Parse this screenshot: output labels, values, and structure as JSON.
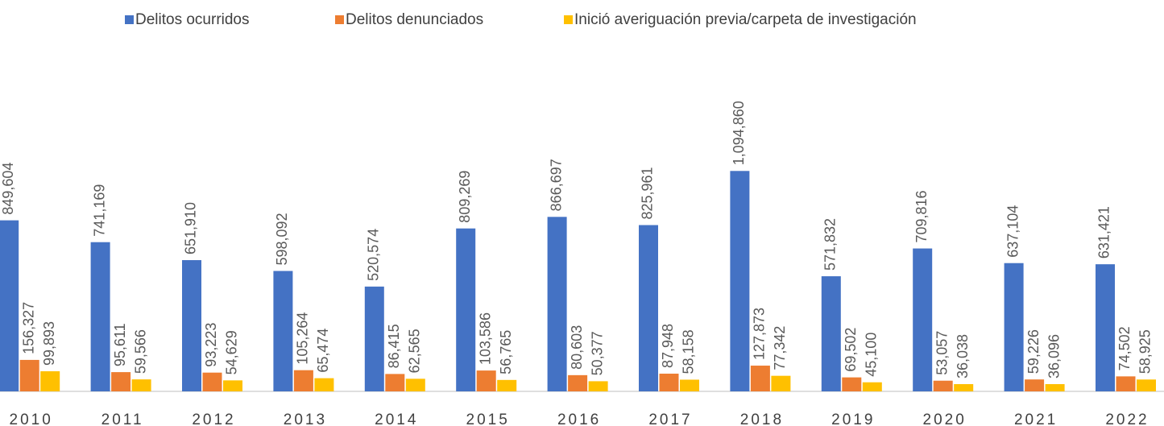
{
  "chart_data": {
    "type": "bar",
    "categories": [
      "2010",
      "2011",
      "2012",
      "2013",
      "2014",
      "2015",
      "2016",
      "2017",
      "2018",
      "2019",
      "2020",
      "2021",
      "2022"
    ],
    "series": [
      {
        "name": "Delitos ocurridos",
        "color": "#4472c4",
        "values": [
          849604,
          741169,
          651910,
          598092,
          520574,
          809269,
          866697,
          825961,
          1094860,
          571832,
          709816,
          637104,
          631421
        ],
        "value_labels": [
          "849,604",
          "741,169",
          "651,910",
          "598,092",
          "520,574",
          "809,269",
          "866,697",
          "825,961",
          "1,094,860",
          "571,832",
          "709,816",
          "637,104",
          "631,421"
        ]
      },
      {
        "name": "Delitos denunciados",
        "color": "#ed7d31",
        "values": [
          156327,
          95611,
          93223,
          105264,
          86415,
          103586,
          80603,
          87948,
          127873,
          69502,
          53057,
          59226,
          74502
        ],
        "value_labels": [
          "156,327",
          "95,611",
          "93,223",
          "105,264",
          "86,415",
          "103,586",
          "80,603",
          "87,948",
          "127,873",
          "69,502",
          "53,057",
          "59,226",
          "74,502"
        ]
      },
      {
        "name": "Inició averiguación previa/carpeta de investigación",
        "color": "#ffc000",
        "values": [
          99893,
          59566,
          54629,
          65474,
          62565,
          56765,
          50377,
          58158,
          77342,
          45100,
          36038,
          36096,
          58925
        ],
        "value_labels": [
          "99,893",
          "59,566",
          "54,629",
          "65,474",
          "62,565",
          "56,765",
          "50,377",
          "58,158",
          "77,342",
          "45,100",
          "36,038",
          "36,096",
          "58,925"
        ]
      }
    ],
    "ylim": [
      0,
      1200000
    ]
  }
}
